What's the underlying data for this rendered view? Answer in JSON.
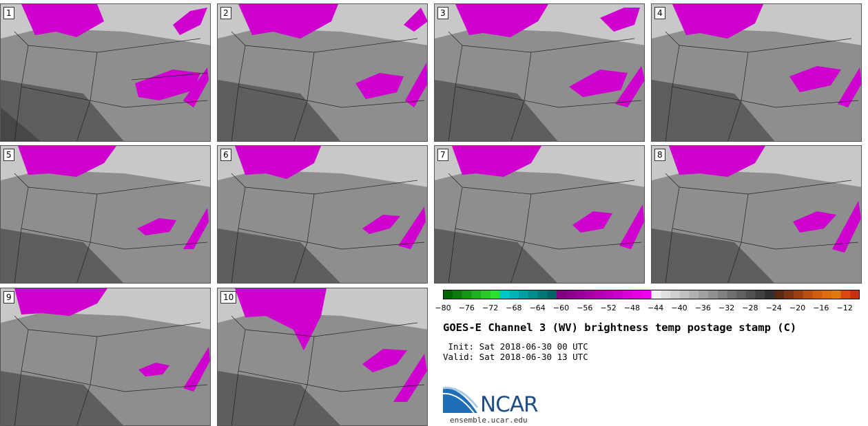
{
  "panels": [
    {
      "label": "1"
    },
    {
      "label": "2"
    },
    {
      "label": "3"
    },
    {
      "label": "4"
    },
    {
      "label": "5"
    },
    {
      "label": "6"
    },
    {
      "label": "7"
    },
    {
      "label": "8"
    },
    {
      "label": "9"
    },
    {
      "label": "10"
    }
  ],
  "colorbar": {
    "ticks": [
      "−80",
      "−76",
      "−72",
      "−68",
      "−64",
      "−60",
      "−56",
      "−52",
      "−48",
      "−44",
      "−40",
      "−36",
      "−32",
      "−28",
      "−24",
      "−20",
      "−16",
      "−12"
    ],
    "colors": [
      "#006400",
      "#0a7a0a",
      "#149514",
      "#1eb01e",
      "#28c828",
      "#2ee02e",
      "#00c8c8",
      "#00b4b4",
      "#00a0a0",
      "#008c8c",
      "#007878",
      "#006464",
      "#800080",
      "#8c008c",
      "#990099",
      "#a600a6",
      "#b300b3",
      "#c000c0",
      "#cc00cc",
      "#d900d9",
      "#e600e6",
      "#f000f0",
      "#f0f0f0",
      "#e0e0e0",
      "#d0d0d0",
      "#c0c0c0",
      "#b0b0b0",
      "#a0a0a0",
      "#909090",
      "#808080",
      "#707070",
      "#606060",
      "#505050",
      "#404040",
      "#303030",
      "#5a2a10",
      "#7a3310",
      "#9a4010",
      "#b84e10",
      "#d05c10",
      "#e06a10",
      "#e07a10",
      "#d84a10",
      "#c83010"
    ]
  },
  "title": "GOES-E Channel 3 (WV) brightness temp postage stamp (C)",
  "init": " Init: Sat 2018-06-30 00 UTC",
  "valid": "Valid: Sat 2018-06-30 13 UTC",
  "logo": {
    "name": "NCAR",
    "url": "ensemble.ucar.edu"
  }
}
